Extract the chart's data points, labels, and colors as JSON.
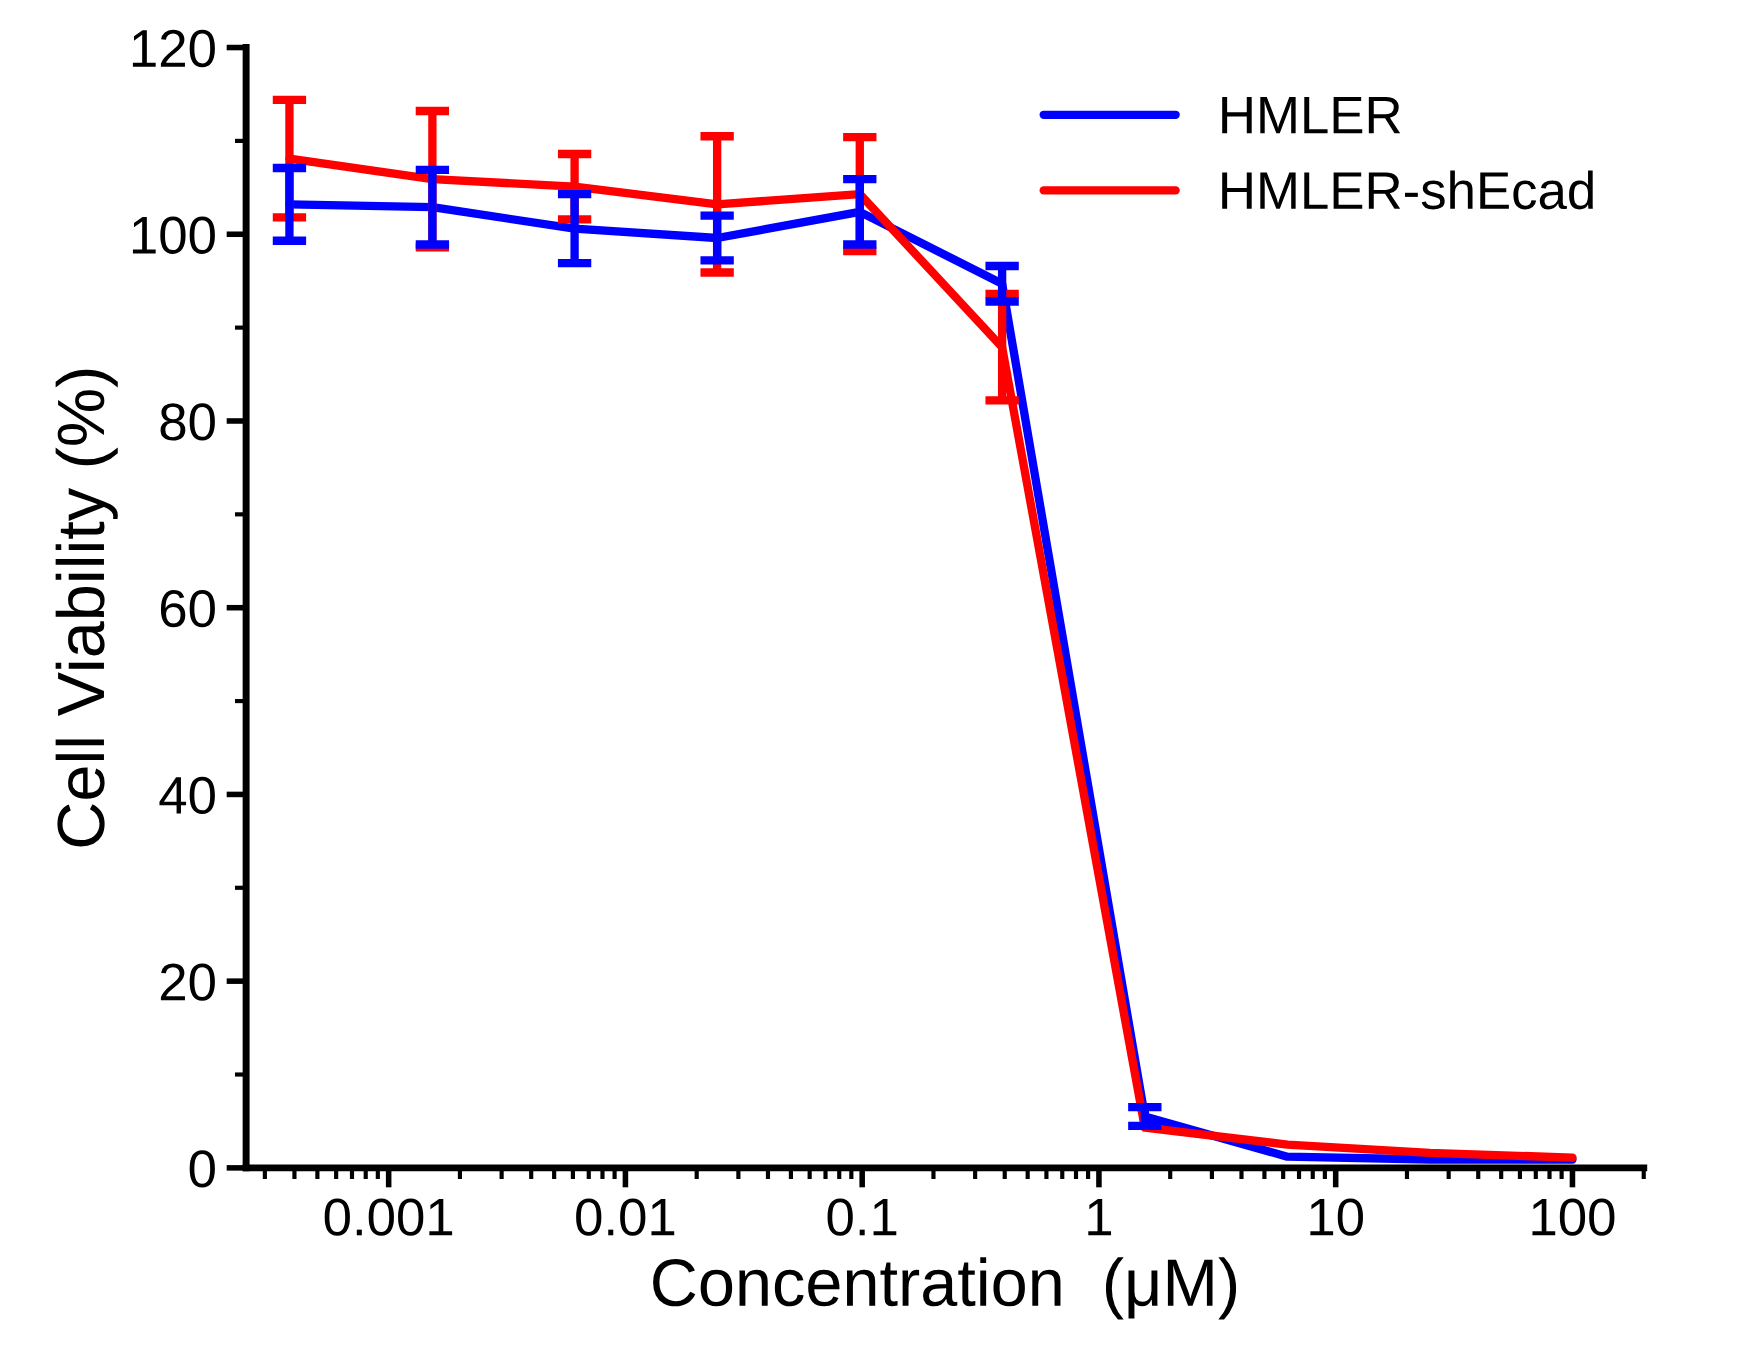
{
  "chart_data": {
    "type": "line",
    "xlabel": "Concentration  (μM)",
    "ylabel": "Cell Viability (%)",
    "x": [
      0.000381,
      0.00153,
      0.0061,
      0.0244,
      0.0977,
      0.39,
      1.5625,
      6.25,
      25,
      100
    ],
    "log": "x",
    "xlim": [
      0.00025,
      200
    ],
    "xticks": [
      0.001,
      0.01,
      0.1,
      1,
      10,
      100
    ],
    "ylim": [
      0,
      120
    ],
    "yticks": [
      0,
      20,
      40,
      60,
      80,
      100,
      120
    ],
    "grid": false,
    "legend": "top right",
    "marker": "none",
    "line_style": "solid",
    "series": [
      {
        "name": "HMLER",
        "color": "#0000ff",
        "values": [
          103.2,
          102.9,
          100.6,
          99.6,
          102.4,
          94.7,
          5.5,
          1.2,
          0.9,
          0.9
        ],
        "errors": [
          3.9,
          4.0,
          3.7,
          2.4,
          3.5,
          1.9,
          1,
          null,
          null,
          null
        ]
      },
      {
        "name": "HMLER-shEcad",
        "color": "#ff0000",
        "values": [
          108.1,
          105.9,
          105.1,
          103.2,
          104.3,
          87.9,
          4.3,
          2.5,
          1.6,
          1.1
        ],
        "errors": [
          6.3,
          7.3,
          3.5,
          7.3,
          6.1,
          5.7,
          null,
          null,
          null,
          null
        ]
      }
    ]
  }
}
